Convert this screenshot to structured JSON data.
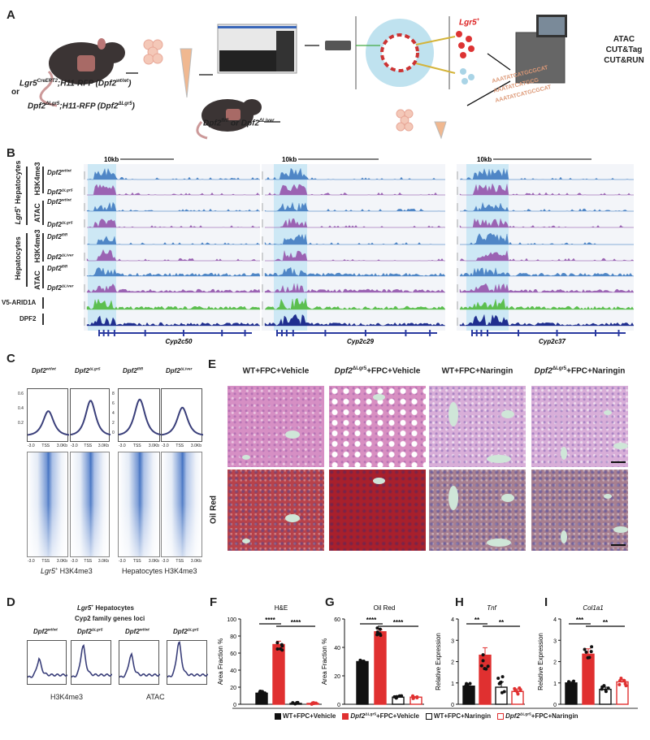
{
  "panels": {
    "a": "A",
    "b": "B",
    "c": "C",
    "d": "D",
    "e": "E",
    "f": "F",
    "g": "G",
    "h": "H",
    "i": "I"
  },
  "panel_a": {
    "genotype1": {
      "base": "Lgr5",
      "sup": "CreERT2",
      "mid": ";H11-RFP (",
      "gene": "Dpf2",
      "gsup": "wt/wt",
      "end": ")"
    },
    "or": "or",
    "genotype2": {
      "base": "Dpf2",
      "sup": "ΔLgr5",
      "mid": ";H11-RFP (",
      "gene": "Dpf2",
      "gsup": "ΔLgr5",
      "end": ")"
    },
    "genotype3": {
      "a": "Dpf2",
      "asup": "fl/fl",
      "or": " or ",
      "b": "Dpf2",
      "bsup": "ΔLiver"
    },
    "sorted_label": {
      "base": "Lgr5",
      "sup": "+"
    },
    "assays": [
      "ATAC",
      "CUT&Tag",
      "CUT&RUN"
    ],
    "dna_text": [
      "AAATATCATGCGCAT",
      "AAATATCATGCG",
      "AAATATCATGCGCAT"
    ]
  },
  "panel_b": {
    "scale": "10kb",
    "groups": [
      {
        "cell": "Lgr5",
        "cellsup": "+",
        "cellrest": " Hepatocytes",
        "assays": [
          "H3K4me3",
          "ATAC"
        ]
      },
      {
        "cell": "Hepatocytes",
        "assays": [
          "H3K4me3",
          "ATAC"
        ]
      }
    ],
    "tracks": [
      {
        "base": "Dpf2",
        "sup": "wt/wt",
        "color": "#4f86c6"
      },
      {
        "base": "Dpf2",
        "sup": "ΔLgr5",
        "color": "#9b63b3"
      },
      {
        "base": "Dpf2",
        "sup": "wt/wt",
        "color": "#4f86c6"
      },
      {
        "base": "Dpf2",
        "sup": "ΔLgr5",
        "color": "#9b63b3"
      },
      {
        "base": "Dpf2",
        "sup": "fl/fl",
        "color": "#4f86c6"
      },
      {
        "base": "Dpf2",
        "sup": "ΔLiver",
        "color": "#9b63b3"
      },
      {
        "base": "Dpf2",
        "sup": "fl/fl",
        "color": "#4f86c6"
      },
      {
        "base": "Dpf2",
        "sup": "ΔLiver",
        "color": "#9b63b3"
      },
      {
        "base": "V5-ARID1A",
        "sup": "",
        "color": "#5cbf4f"
      },
      {
        "base": "DPF2",
        "sup": "",
        "color": "#1f2e8f"
      }
    ],
    "genes": [
      "Cyp2c50",
      "Cyp2c29",
      "Cyp2c37"
    ],
    "highlight_color": "#cde8f5"
  },
  "panel_c": {
    "titles": [
      {
        "base": "Dpf2",
        "sup": "wt/wt"
      },
      {
        "base": "Dpf2",
        "sup": "ΔLgr5"
      },
      {
        "base": "Dpf2",
        "sup": "fl/fl"
      },
      {
        "base": "Dpf2",
        "sup": "ΔLiver"
      }
    ],
    "y_ticks_left": [
      "0.6",
      "0.4",
      "0.2"
    ],
    "y_ticks_right": [
      "8",
      "6",
      "4",
      "2",
      "0"
    ],
    "x_ticks": [
      "-3.0",
      "TSS",
      "3.0Kb"
    ],
    "xlabel_left": {
      "base": "Lgr5",
      "sup": "+",
      "rest": " H3K4me3"
    },
    "xlabel_right": "Hepatocytes H3K4me3"
  },
  "panel_d": {
    "title1": {
      "base": "Lgr5",
      "sup": "+",
      "rest": " Hepatocytes"
    },
    "title2": "Cyp2 family genes loci",
    "titles": [
      {
        "base": "Dpf2",
        "sup": "wt/wt"
      },
      {
        "base": "Dpf2",
        "sup": "ΔLgr5"
      },
      {
        "base": "Dpf2",
        "sup": "wt/wt"
      },
      {
        "base": "Dpf2",
        "sup": "ΔLgr5"
      }
    ],
    "xlabels": [
      "H3K4me3",
      "ATAC"
    ]
  },
  "panel_e": {
    "columns": [
      {
        "base": "WT+FPC+Vehicle",
        "sup": "",
        "rest": ""
      },
      {
        "base": "Dpf2",
        "sup": "ΔLgr5",
        "rest": "+FPC+Vehicle"
      },
      {
        "base": "WT+FPC+Naringin",
        "sup": "",
        "rest": ""
      },
      {
        "base": "Dpf2",
        "sup": "ΔLgr5",
        "rest": "+FPC+Naringin"
      }
    ],
    "row_label": "Oil Red"
  },
  "legend": [
    {
      "label": "WT+FPC+Vehicle",
      "fill": "#111111",
      "edge": "#111111"
    },
    {
      "base": "Dpf2",
      "sup": "ΔLgr5",
      "label": "+FPC+Vehicle",
      "fill": "#e03030",
      "edge": "#e03030"
    },
    {
      "label": "WT+FPC+Naringin",
      "fill": "#ffffff",
      "edge": "#111111"
    },
    {
      "base": "Dpf2",
      "sup": "ΔLgr5",
      "label": "+FPC+Naringin",
      "fill": "#ffffff",
      "edge": "#e03030"
    }
  ],
  "chart_data": [
    {
      "type": "bar",
      "title": "H&E",
      "ylabel": "Area Fraction %",
      "ylim": [
        0,
        100
      ],
      "yticks": [
        "0",
        "20",
        "40",
        "60",
        "80",
        "100"
      ],
      "values": [
        13,
        70,
        1,
        1
      ],
      "errors": [
        1.5,
        4,
        0.5,
        0.5
      ],
      "significance": [
        {
          "from": 1,
          "to": 2,
          "label": "****"
        },
        {
          "from": 2,
          "to": 4,
          "label": "****"
        }
      ]
    },
    {
      "type": "bar",
      "title": "Oil Red",
      "ylabel": "Area Fraction %",
      "ylim": [
        0,
        60
      ],
      "yticks": [
        "0",
        "20",
        "40",
        "60"
      ],
      "values": [
        30,
        51,
        5,
        5
      ],
      "errors": [
        1,
        1.5,
        0.5,
        0.5
      ],
      "significance": [
        {
          "from": 1,
          "to": 2,
          "label": "****"
        },
        {
          "from": 2,
          "to": 4,
          "label": "****"
        }
      ]
    },
    {
      "type": "bar",
      "title": "Tnf",
      "ylabel": "Relative Expression",
      "ylim": [
        0,
        4
      ],
      "yticks": [
        "0",
        "1",
        "2",
        "3",
        "4"
      ],
      "values": [
        0.85,
        2.3,
        0.8,
        0.6
      ],
      "errors": [
        0.07,
        0.35,
        0.25,
        0.12
      ],
      "significance": [
        {
          "from": 1,
          "to": 2,
          "label": "**"
        },
        {
          "from": 2,
          "to": 4,
          "label": "**"
        }
      ]
    },
    {
      "type": "bar",
      "title": "Col1a1",
      "ylabel": "Relative Expression",
      "ylim": [
        0,
        4
      ],
      "yticks": [
        "0",
        "1",
        "2",
        "3",
        "4"
      ],
      "values": [
        1.0,
        2.35,
        0.7,
        1.05
      ],
      "errors": [
        0.06,
        0.25,
        0.1,
        0.12
      ],
      "significance": [
        {
          "from": 1,
          "to": 2,
          "label": "***"
        },
        {
          "from": 2,
          "to": 4,
          "label": "**"
        }
      ]
    }
  ]
}
